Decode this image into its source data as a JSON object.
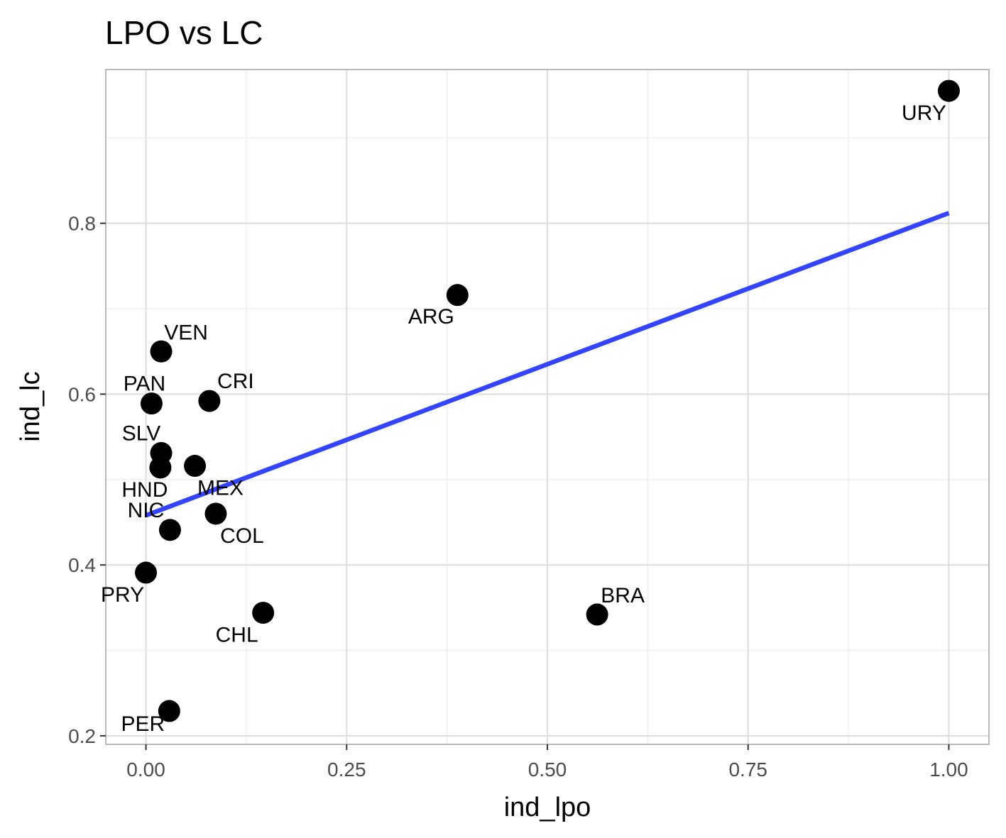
{
  "chart_data": {
    "type": "scatter",
    "title": "LPO vs LC",
    "xlabel": "ind_lpo",
    "ylabel": "ind_lc",
    "xlim": [
      -0.05,
      1.05
    ],
    "ylim": [
      0.19,
      0.98
    ],
    "x_ticks": [
      0.0,
      0.25,
      0.5,
      0.75,
      1.0
    ],
    "x_tick_labels": [
      "0.00",
      "0.25",
      "0.50",
      "0.75",
      "1.00"
    ],
    "y_ticks": [
      0.2,
      0.4,
      0.6,
      0.8
    ],
    "y_tick_labels": [
      "0.2",
      "0.4",
      "0.6",
      "0.8"
    ],
    "grid": true,
    "legend": "none",
    "point_color": "#000000",
    "line_color": "#3344ff",
    "points": [
      {
        "label": "URY",
        "x": 1.0,
        "y": 0.955
      },
      {
        "label": "ARG",
        "x": 0.388,
        "y": 0.716
      },
      {
        "label": "VEN",
        "x": 0.019,
        "y": 0.65
      },
      {
        "label": "PAN",
        "x": 0.007,
        "y": 0.589
      },
      {
        "label": "CRI",
        "x": 0.079,
        "y": 0.592
      },
      {
        "label": "SLV",
        "x": 0.019,
        "y": 0.531
      },
      {
        "label": "HND",
        "x": 0.018,
        "y": 0.514
      },
      {
        "label": "MEX",
        "x": 0.061,
        "y": 0.516
      },
      {
        "label": "COL",
        "x": 0.087,
        "y": 0.46
      },
      {
        "label": "NIC",
        "x": 0.03,
        "y": 0.441
      },
      {
        "label": "PRY",
        "x": 0.0,
        "y": 0.391
      },
      {
        "label": "CHL",
        "x": 0.146,
        "y": 0.344
      },
      {
        "label": "BRA",
        "x": 0.562,
        "y": 0.342
      },
      {
        "label": "PER",
        "x": 0.029,
        "y": 0.229
      }
    ],
    "trend_line": {
      "x": [
        0.0,
        1.0
      ],
      "y": [
        0.458,
        0.812
      ]
    }
  }
}
